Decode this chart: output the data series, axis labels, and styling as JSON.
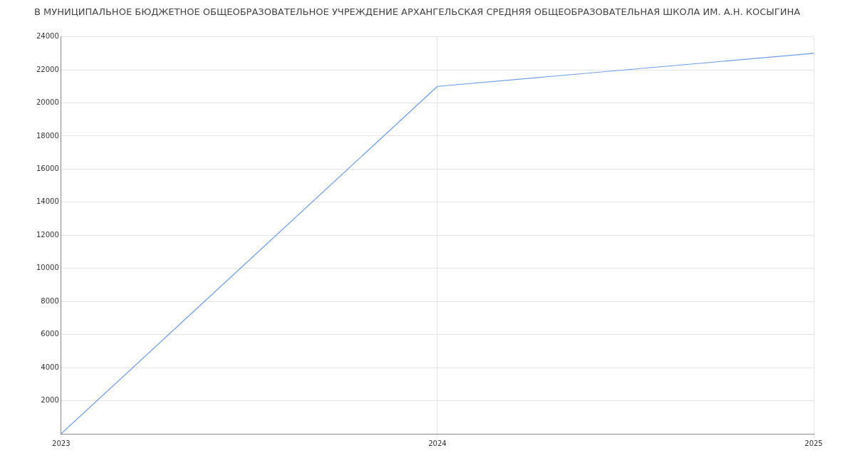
{
  "chart_data": {
    "type": "line",
    "title": "В МУНИЦИПАЛЬНОЕ БЮДЖЕТНОЕ ОБЩЕОБРАЗОВАТЕЛЬНОЕ УЧРЕЖДЕНИЕ АРХАНГЕЛЬСКАЯ СРЕДНЯЯ ОБЩЕОБРАЗОВАТЕЛЬНАЯ ШКОЛА ИМ. А.Н. КОСЫГИНА",
    "x": [
      2023,
      2024,
      2025
    ],
    "series": [
      {
        "color": "#6d9eeb",
        "values": [
          0,
          21000,
          23000
        ]
      }
    ],
    "xlim": [
      2023,
      2025
    ],
    "xticks": [
      {
        "value": 2023,
        "label": "2023"
      },
      {
        "value": 2024,
        "label": "2024"
      },
      {
        "value": 2025,
        "label": "2025"
      }
    ],
    "ylim": [
      0,
      24000
    ],
    "yticks": [
      {
        "value": 0,
        "label": null
      },
      2000,
      4000,
      6000,
      8000,
      10000,
      12000,
      14000,
      16000,
      18000,
      20000,
      22000,
      24000
    ],
    "grid": true,
    "legend": false,
    "marker": "none",
    "line_style": "solid"
  }
}
